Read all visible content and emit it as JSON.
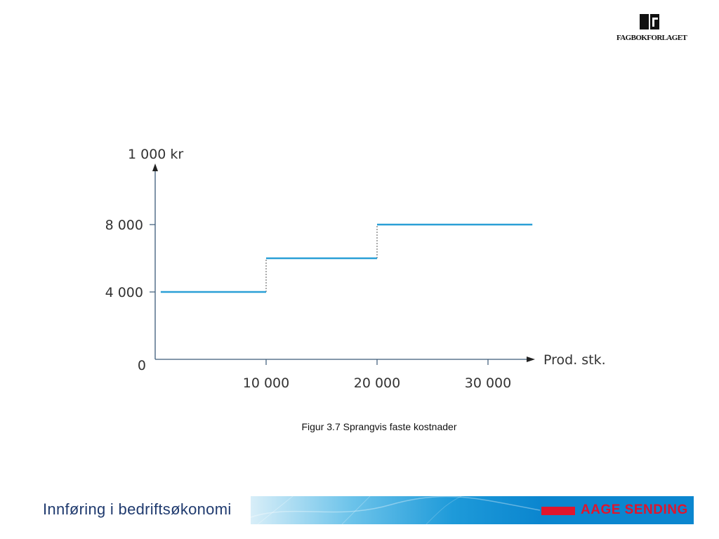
{
  "logo": {
    "text": "FAGBOKFORLAGET",
    "icon": "book-logo-icon"
  },
  "chart_data": {
    "type": "line",
    "title": "",
    "ylabel": "1 000 kr",
    "xlabel": "Prod. stk.",
    "xlim": [
      0,
      35000
    ],
    "ylim": [
      0,
      10000
    ],
    "x_ticks": [
      {
        "value": 10000,
        "label": "10 000"
      },
      {
        "value": 20000,
        "label": "20 000"
      },
      {
        "value": 30000,
        "label": "30 000"
      }
    ],
    "y_ticks": [
      {
        "value": 0,
        "label": "0"
      },
      {
        "value": 4000,
        "label": "4 000"
      },
      {
        "value": 8000,
        "label": "8 000"
      }
    ],
    "segments": [
      {
        "x0": 500,
        "x1": 10000,
        "y": 4000
      },
      {
        "x0": 10000,
        "x1": 20000,
        "y": 6000
      },
      {
        "x0": 20000,
        "x1": 34000,
        "y": 8000
      }
    ],
    "jumps": [
      {
        "x": 10000,
        "y0": 4000,
        "y1": 6000
      },
      {
        "x": 20000,
        "y0": 6000,
        "y1": 8000
      }
    ],
    "line_color": "#2a9fd6",
    "grid": false
  },
  "caption": "Figur 3.7 Sprangvis faste kostnader",
  "footer": {
    "title": "Innføring i bedriftsøkonomi",
    "brand": "AAGE SENDING"
  }
}
